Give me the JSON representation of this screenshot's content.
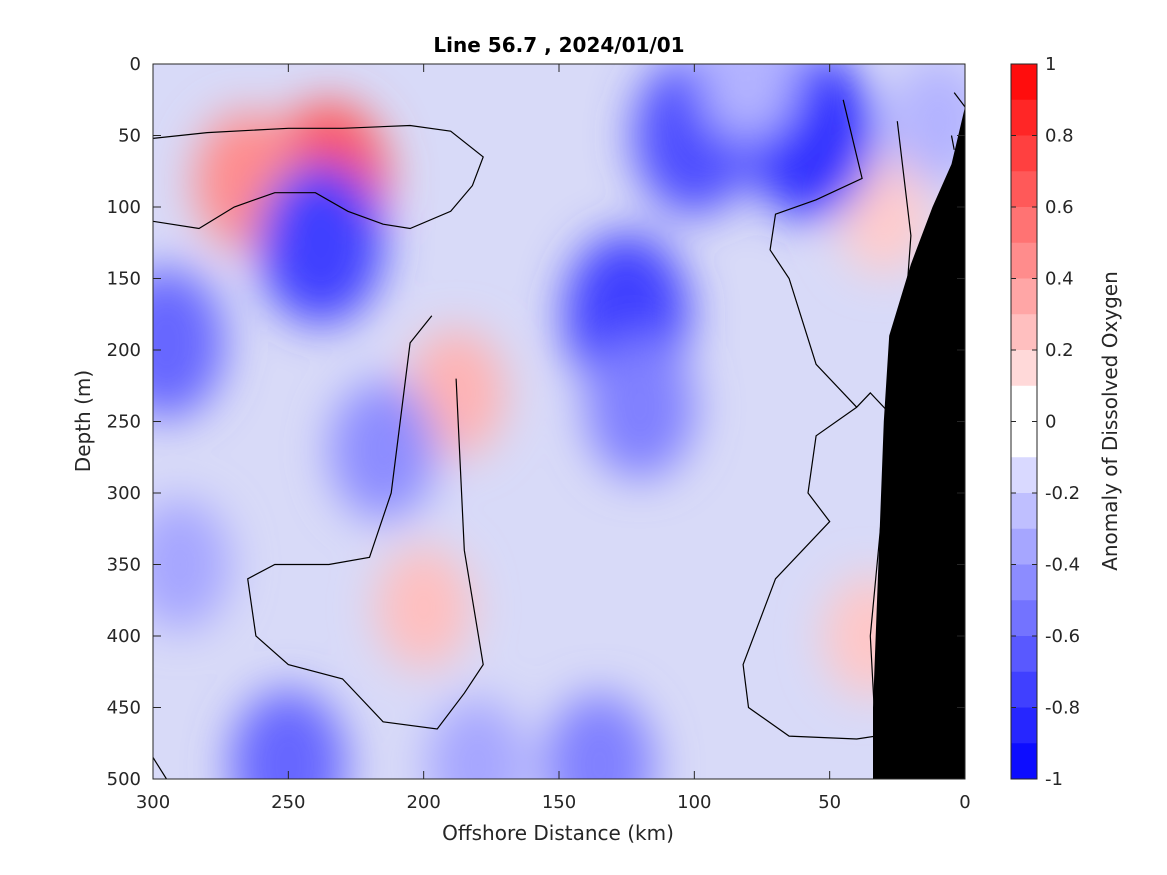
{
  "chart_data": {
    "type": "heatmap",
    "subtype": "filled-contour-section",
    "title": "Line 56.7 , 2024/01/01",
    "xlabel": "Offshore Distance (km)",
    "ylabel": "Depth (m)",
    "colorbar_label": "Anomaly of Dissolved Oxygen",
    "xlim": [
      300,
      0
    ],
    "ylim": [
      0,
      500
    ],
    "x_ticks": [
      300,
      250,
      200,
      150,
      100,
      50,
      0
    ],
    "y_ticks": [
      0,
      50,
      100,
      150,
      200,
      250,
      300,
      350,
      400,
      450,
      500
    ],
    "x_tick_labels": [
      "300",
      "250",
      "200",
      "150",
      "100",
      "50",
      "0"
    ],
    "y_tick_labels": [
      "0",
      "50",
      "100",
      "150",
      "200",
      "250",
      "300",
      "350",
      "400",
      "450",
      "500"
    ],
    "colorbar_range": [
      -1,
      1
    ],
    "colorbar_ticks": [
      1,
      0.8,
      0.6,
      0.4,
      0.2,
      0,
      -0.2,
      -0.4,
      -0.6,
      -0.8,
      -1
    ],
    "colorbar_tick_labels": [
      "1",
      "0.8",
      "0.6",
      "0.4",
      "0.2",
      "0",
      "-0.2",
      "-0.4",
      "-0.6",
      "-0.8",
      "-1"
    ],
    "colorbar_levels": 20,
    "colors": {
      "positive": "#ff0000",
      "negative": "#0000ff",
      "neutral": "#ffffff",
      "mask": "#000000",
      "contour_zero": "#000000"
    },
    "features": [
      {
        "label": "positive anomaly",
        "x": 235,
        "y": 80,
        "value": 0.65
      },
      {
        "label": "positive anomaly",
        "x": 265,
        "y": 82,
        "value": 0.45
      },
      {
        "label": "positive anomaly",
        "x": 188,
        "y": 230,
        "value": 0.3
      },
      {
        "label": "positive anomaly",
        "x": 200,
        "y": 380,
        "value": 0.25
      },
      {
        "label": "positive anomaly",
        "x": 30,
        "y": 105,
        "value": 0.2
      },
      {
        "label": "positive anomaly",
        "x": 35,
        "y": 400,
        "value": 0.22
      },
      {
        "label": "negative anomaly",
        "x": 238,
        "y": 125,
        "value": -0.75
      },
      {
        "label": "negative anomaly",
        "x": 295,
        "y": 195,
        "value": -0.6
      },
      {
        "label": "negative anomaly",
        "x": 215,
        "y": 270,
        "value": -0.45
      },
      {
        "label": "negative anomaly",
        "x": 125,
        "y": 175,
        "value": -0.75
      },
      {
        "label": "negative anomaly",
        "x": 120,
        "y": 240,
        "value": -0.5
      },
      {
        "label": "negative anomaly",
        "x": 100,
        "y": 50,
        "value": -0.7
      },
      {
        "label": "negative anomaly",
        "x": 57,
        "y": 50,
        "value": -0.8
      },
      {
        "label": "negative anomaly",
        "x": 250,
        "y": 490,
        "value": -0.6
      },
      {
        "label": "negative anomaly",
        "x": 135,
        "y": 490,
        "value": -0.5
      },
      {
        "label": "negative anomaly",
        "x": 180,
        "y": 490,
        "value": -0.35
      },
      {
        "label": "negative anomaly",
        "x": 290,
        "y": 350,
        "value": -0.35
      },
      {
        "label": "negative anomaly",
        "x": 80,
        "y": 10,
        "value": -0.3
      },
      {
        "label": "negative anomaly",
        "x": 10,
        "y": 40,
        "value": -0.3
      }
    ],
    "bathymetry_mask": [
      [
        0,
        30
      ],
      [
        5,
        70
      ],
      [
        12,
        100
      ],
      [
        20,
        140
      ],
      [
        28,
        190
      ],
      [
        30,
        250
      ],
      [
        32,
        350
      ],
      [
        34,
        450
      ],
      [
        34,
        500
      ],
      [
        0,
        500
      ]
    ],
    "zero_contours": [
      [
        [
          300,
          52
        ],
        [
          280,
          48
        ],
        [
          250,
          45
        ],
        [
          230,
          45
        ],
        [
          205,
          43
        ],
        [
          190,
          47
        ],
        [
          178,
          65
        ],
        [
          182,
          85
        ],
        [
          190,
          103
        ],
        [
          205,
          115
        ],
        [
          215,
          112
        ],
        [
          228,
          103
        ],
        [
          240,
          90
        ],
        [
          255,
          90
        ],
        [
          270,
          100
        ],
        [
          283,
          115
        ],
        [
          300,
          110
        ]
      ],
      [
        [
          197,
          176
        ],
        [
          205,
          195
        ],
        [
          212,
          300
        ],
        [
          220,
          345
        ],
        [
          235,
          350
        ],
        [
          255,
          350
        ],
        [
          265,
          360
        ],
        [
          262,
          400
        ],
        [
          250,
          420
        ],
        [
          230,
          430
        ],
        [
          215,
          460
        ],
        [
          195,
          465
        ],
        [
          185,
          440
        ],
        [
          178,
          420
        ],
        [
          185,
          340
        ],
        [
          188,
          220
        ]
      ],
      [
        [
          45,
          25
        ],
        [
          38,
          80
        ],
        [
          55,
          95
        ],
        [
          70,
          105
        ],
        [
          72,
          130
        ],
        [
          65,
          150
        ],
        [
          60,
          180
        ],
        [
          55,
          210
        ],
        [
          40,
          240
        ],
        [
          35,
          230
        ],
        [
          25,
          250
        ],
        [
          20,
          120
        ],
        [
          25,
          40
        ]
      ],
      [
        [
          40,
          240
        ],
        [
          55,
          260
        ],
        [
          58,
          300
        ],
        [
          50,
          320
        ],
        [
          70,
          360
        ],
        [
          82,
          420
        ],
        [
          80,
          450
        ],
        [
          65,
          470
        ],
        [
          40,
          472
        ],
        [
          33,
          470
        ],
        [
          35,
          400
        ],
        [
          30,
          300
        ],
        [
          28,
          260
        ]
      ],
      [
        [
          4,
          20
        ],
        [
          0,
          30
        ]
      ],
      [
        [
          5,
          50
        ],
        [
          4,
          60
        ]
      ],
      [
        [
          300,
          485
        ],
        [
          295,
          500
        ]
      ]
    ]
  }
}
